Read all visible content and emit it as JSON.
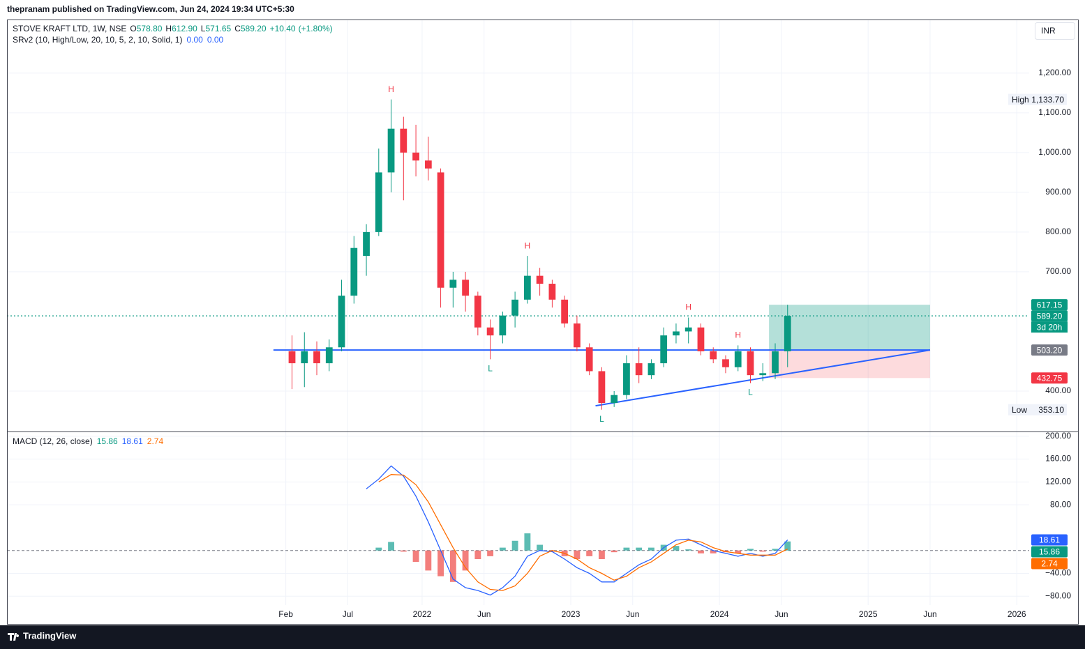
{
  "header": {
    "published": "thepranam published on TradingView.com, Jun 24, 2024 19:34 UTC+5:30"
  },
  "legend": {
    "symbol": "STOVE KRAFT LTD, 1W, NSE",
    "ohlc": [
      {
        "key": "O",
        "value": "578.80"
      },
      {
        "key": "H",
        "value": "612.90"
      },
      {
        "key": "L",
        "value": "571.65"
      },
      {
        "key": "C",
        "value": "589.20"
      }
    ],
    "change": "+10.40",
    "change_pct": "(+1.80%)",
    "value_color": "#089981"
  },
  "indicator": {
    "name": "SRv2 (10, High/Low, 20, 10, 5, 2, 10, Solid, 1)",
    "values": [
      "0.00",
      "0.00"
    ],
    "color": "#2962ff"
  },
  "currency": "INR",
  "footer": {
    "brand": "TradingView"
  },
  "chart_data": [
    {
      "type": "candlestick",
      "x": [
        "2021-02",
        "2021-03",
        "2021-04",
        "2021-05",
        "2021-06",
        "2021-07",
        "2021-08",
        "2021-09",
        "2021-10",
        "2021-11",
        "2021-12",
        "2022-01",
        "2022-02",
        "2022-03",
        "2022-04",
        "2022-05",
        "2022-06",
        "2022-07",
        "2022-08",
        "2022-09",
        "2022-10",
        "2022-11",
        "2022-12",
        "2023-01",
        "2023-02",
        "2023-03",
        "2023-04",
        "2023-05",
        "2023-06",
        "2023-07",
        "2023-08",
        "2023-09",
        "2023-10",
        "2023-11",
        "2023-12",
        "2024-01",
        "2024-02",
        "2024-03",
        "2024-04",
        "2024-05",
        "2024-06"
      ],
      "open": [
        500,
        470,
        500,
        470,
        510,
        640,
        740,
        800,
        950,
        1060,
        1000,
        980,
        950,
        660,
        680,
        640,
        560,
        540,
        590,
        630,
        690,
        670,
        630,
        570,
        510,
        450,
        370,
        390,
        470,
        440,
        470,
        540,
        550,
        560,
        500,
        480,
        460,
        500,
        440,
        445,
        500
      ],
      "high": [
        540,
        548,
        525,
        530,
        680,
        790,
        820,
        1010,
        1133.7,
        1090,
        1070,
        1040,
        960,
        700,
        700,
        650,
        580,
        600,
        650,
        740,
        710,
        680,
        640,
        590,
        520,
        460,
        400,
        490,
        510,
        480,
        560,
        570,
        585,
        570,
        510,
        490,
        515,
        510,
        470,
        520,
        617.15
      ],
      "low": [
        405,
        410,
        440,
        450,
        500,
        620,
        690,
        790,
        900,
        880,
        940,
        930,
        610,
        610,
        600,
        540,
        480,
        520,
        560,
        620,
        640,
        610,
        560,
        500,
        440,
        353.1,
        360,
        380,
        420,
        430,
        460,
        520,
        520,
        490,
        470,
        445,
        450,
        420,
        425,
        430,
        460
      ],
      "close": [
        470,
        500,
        470,
        510,
        640,
        760,
        800,
        950,
        1060,
        1000,
        980,
        960,
        660,
        680,
        640,
        560,
        540,
        590,
        630,
        690,
        670,
        630,
        570,
        510,
        450,
        370,
        390,
        470,
        440,
        470,
        540,
        550,
        560,
        500,
        480,
        460,
        500,
        440,
        445,
        500,
        589.2
      ],
      "up_color": "#089981",
      "down_color": "#f23645",
      "xlim": [
        "2019-04",
        "2026-02"
      ],
      "ylim": [
        300,
        1340
      ],
      "yticks": [
        {
          "value": 400,
          "label": "400.00"
        },
        {
          "value": 700,
          "label": "700.00"
        },
        {
          "value": 800,
          "label": "800.00"
        },
        {
          "value": 900,
          "label": "900.00"
        },
        {
          "value": 1000,
          "label": "1,000.00"
        },
        {
          "value": 1100,
          "label": "1,100.00"
        },
        {
          "value": 1200,
          "label": "1,200.00"
        }
      ],
      "grid": true,
      "annotations": [
        {
          "text": "H",
          "x": "2021-10",
          "y": 1133.7,
          "position": "above",
          "color": "#f23645"
        },
        {
          "text": "H",
          "x": "2022-09",
          "y": 740,
          "position": "above",
          "color": "#f23645"
        },
        {
          "text": "H",
          "x": "2023-10",
          "y": 585,
          "position": "above",
          "color": "#f23645"
        },
        {
          "text": "H",
          "x": "2024-02",
          "y": 515,
          "position": "above",
          "color": "#f23645"
        },
        {
          "text": "L",
          "x": "2022-06",
          "y": 480,
          "position": "below",
          "color": "#089981"
        },
        {
          "text": "L",
          "x": "2023-03",
          "y": 353.1,
          "position": "below",
          "color": "#089981"
        },
        {
          "text": "L",
          "x": "2024-03",
          "y": 420,
          "position": "below",
          "color": "#089981"
        }
      ],
      "lines": [
        {
          "x": [
            "2021-01",
            "2025-06"
          ],
          "y": [
            503.2,
            503.2
          ],
          "color": "#2962ff"
        },
        {
          "x": [
            "2023-03",
            "2025-06"
          ],
          "y": [
            363,
            503.2
          ],
          "color": "#2962ff"
        }
      ],
      "position": {
        "x": [
          "2024-05",
          "2025-06"
        ],
        "entry": 503.2,
        "target": 617.15,
        "stop": 432.75,
        "profit_color": "#089981",
        "loss_color": "#f23645"
      },
      "price_line": {
        "value": 589.2,
        "color": "#089981"
      },
      "price_labels": [
        {
          "value": 617.15,
          "label": "617.15",
          "color": "#089981"
        },
        {
          "value": 589.2,
          "label": "589.20",
          "color": "#089981",
          "countdown": "3d 20h"
        },
        {
          "value": 503.2,
          "label": "503.20",
          "color": "#787b86"
        },
        {
          "value": 432.75,
          "label": "432.75",
          "color": "#f23645"
        }
      ],
      "extremes": [
        {
          "name": "High",
          "value": 1133.7,
          "label": "1,133.70"
        },
        {
          "name": "Low",
          "value": 353.1,
          "label": "353.10"
        }
      ]
    },
    {
      "type": "macd",
      "title": "MACD (12, 26, close)",
      "x": [
        "2021-08",
        "2021-09",
        "2021-10",
        "2021-11",
        "2021-12",
        "2022-01",
        "2022-02",
        "2022-03",
        "2022-04",
        "2022-05",
        "2022-06",
        "2022-07",
        "2022-08",
        "2022-09",
        "2022-10",
        "2022-11",
        "2022-12",
        "2023-01",
        "2023-02",
        "2023-03",
        "2023-04",
        "2023-05",
        "2023-06",
        "2023-07",
        "2023-08",
        "2023-09",
        "2023-10",
        "2023-11",
        "2023-12",
        "2024-01",
        "2024-02",
        "2024-03",
        "2024-04",
        "2024-05",
        "2024-06"
      ],
      "series": [
        {
          "kind": "histogram",
          "color": "#26a69a",
          "negative_color": "#ef5350",
          "values": [
            null,
            5,
            15,
            -2,
            -20,
            -35,
            -45,
            -55,
            -35,
            -15,
            -10,
            5,
            17,
            30,
            10,
            -2,
            -10,
            -15,
            -10,
            -15,
            -3,
            5,
            5,
            5,
            10,
            8,
            2,
            -5,
            -5,
            -3,
            -5,
            3,
            -2,
            3,
            15.86
          ]
        },
        {
          "kind": "line",
          "color": "#2962ff",
          "values": [
            108,
            125,
            148,
            130,
            95,
            50,
            0,
            -50,
            -65,
            -70,
            -78,
            -65,
            -45,
            -10,
            0,
            -2,
            -15,
            -30,
            -40,
            -55,
            -55,
            -40,
            -25,
            -15,
            5,
            18,
            20,
            10,
            0,
            -5,
            -10,
            -5,
            -10,
            -5,
            18.61
          ]
        },
        {
          "kind": "line",
          "color": "#ff6d00",
          "values": [
            null,
            120,
            133,
            132,
            115,
            85,
            45,
            5,
            -30,
            -55,
            -68,
            -70,
            -62,
            -40,
            -10,
            0,
            -5,
            -15,
            -30,
            -40,
            -52,
            -45,
            -30,
            -20,
            -5,
            10,
            18,
            15,
            5,
            -2,
            -5,
            -8,
            -8,
            -8,
            2.74
          ]
        }
      ],
      "legend_values": [
        {
          "label": "15.86",
          "color": "#089981"
        },
        {
          "label": "18.61",
          "color": "#2962ff"
        },
        {
          "label": "2.74",
          "color": "#ff6d00"
        }
      ],
      "baseline": 0,
      "axis_labels": [
        {
          "value": 18.61,
          "label": "18.61",
          "color": "#2962ff"
        },
        {
          "value": 15.86,
          "label": "15.86",
          "color": "#089981"
        },
        {
          "value": 2.74,
          "label": "2.74",
          "color": "#ff6d00"
        }
      ],
      "xlim": [
        "2019-04",
        "2026-02"
      ],
      "ylim": [
        -126,
        207
      ],
      "yticks": [
        {
          "value": 200,
          "label": "200.00"
        },
        {
          "value": 160,
          "label": "160.00"
        },
        {
          "value": 120,
          "label": "120.00"
        },
        {
          "value": 80,
          "label": "80.00"
        },
        {
          "value": -40,
          "label": "−40.00"
        },
        {
          "value": -80,
          "label": "−80.00"
        }
      ],
      "xticks": [
        {
          "value": "2021-02",
          "label": "Feb"
        },
        {
          "value": "2021-07",
          "label": "Jul"
        },
        {
          "value": "2022-01",
          "label": "2022"
        },
        {
          "value": "2022-06",
          "label": "Jun"
        },
        {
          "value": "2023-01",
          "label": "2023"
        },
        {
          "value": "2023-06",
          "label": "Jun"
        },
        {
          "value": "2024-01",
          "label": "2024"
        },
        {
          "value": "2024-06",
          "label": "Jun"
        },
        {
          "value": "2025-01",
          "label": "2025"
        },
        {
          "value": "2025-06",
          "label": "Jun"
        },
        {
          "value": "2026-01",
          "label": "2026"
        }
      ],
      "grid": true
    }
  ]
}
